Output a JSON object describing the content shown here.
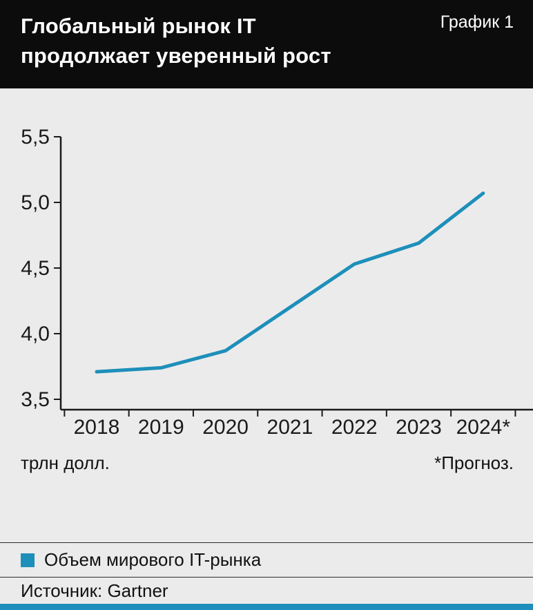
{
  "page": {
    "background": "#ebebeb",
    "accent_color": "#1d8fba"
  },
  "header": {
    "title_line1": "Глобальный рынок IT",
    "title_line2": "продолжает уверенный рост",
    "chart_label": "График 1",
    "background": "#0c0c0c"
  },
  "chart_data": {
    "type": "line",
    "title": "Глобальный рынок IT продолжает уверенный рост",
    "categories": [
      "2018",
      "2019",
      "2020",
      "2021",
      "2022",
      "2023",
      "2024*"
    ],
    "series": [
      {
        "name": "Объем мирового IT-рынка",
        "values": [
          3.71,
          3.74,
          3.87,
          4.2,
          4.53,
          4.69,
          5.07
        ]
      }
    ],
    "ylim": [
      3.5,
      5.5
    ],
    "yticks": [
      3.5,
      4.0,
      4.5,
      5.0,
      5.5
    ],
    "ytick_labels": [
      "3,5",
      "4,0",
      "4,5",
      "5,0",
      "5,5"
    ],
    "unit_label": "трлн долл.",
    "footnote": "*Прогноз.",
    "line_color": "#1d8fba",
    "axis_color": "#1a1a1a",
    "grid": false,
    "legend_position": "bottom"
  },
  "legend": {
    "swatch_color": "#1d8fba",
    "label": "Объем мирового IT-рынка"
  },
  "source": {
    "label": "Источник: Gartner"
  }
}
